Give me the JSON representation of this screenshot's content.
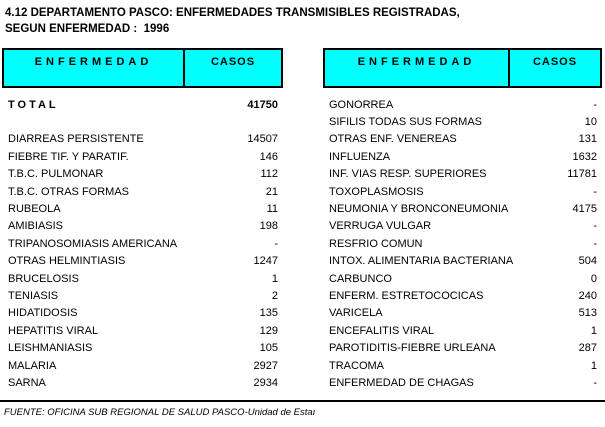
{
  "title": {
    "line1": "4.12 DEPARTAMENTO PASCO: ENFERMEDADES TRANSMISIBLES REGISTRADAS,",
    "line2": "SEGUN ENFERMEDAD :  1996"
  },
  "colors": {
    "header_bg": "#00FFFF",
    "border": "#000000",
    "text": "#000000",
    "page_bg": "#FFFFFF"
  },
  "left_table": {
    "headers": {
      "disease": "ENFERMEDAD",
      "cases": "CASOS"
    },
    "total_row": {
      "name": "TOTAL",
      "cases": "41750"
    },
    "rows": [
      {
        "name": "DIARREAS PERSISTENTE",
        "cases": "14507"
      },
      {
        "name": "FIEBRE TIF. Y PARATIF.",
        "cases": "146"
      },
      {
        "name": "T.B.C. PULMONAR",
        "cases": "112"
      },
      {
        "name": "T.B.C. OTRAS FORMAS",
        "cases": "21"
      },
      {
        "name": "RUBEOLA",
        "cases": "11"
      },
      {
        "name": "AMIBIASIS",
        "cases": "198"
      },
      {
        "name": "TRIPANOSOMIASIS AMERICANA",
        "cases": "-"
      },
      {
        "name": "OTRAS HELMINTIASIS",
        "cases": "1247"
      },
      {
        "name": "BRUCELOSIS",
        "cases": "1"
      },
      {
        "name": "TENIASIS",
        "cases": "2"
      },
      {
        "name": "HIDATIDOSIS",
        "cases": "135"
      },
      {
        "name": "HEPATITIS VIRAL",
        "cases": "129"
      },
      {
        "name": "LEISHMANIASIS",
        "cases": "105"
      },
      {
        "name": "MALARIA",
        "cases": "2927"
      },
      {
        "name": "SARNA",
        "cases": "2934"
      }
    ]
  },
  "right_table": {
    "headers": {
      "disease": "ENFERMEDAD",
      "cases": "CASOS"
    },
    "rows": [
      {
        "name": "GONORREA",
        "cases": "-"
      },
      {
        "name": "SIFILIS TODAS SUS FORMAS",
        "cases": "10"
      },
      {
        "name": "OTRAS ENF. VENEREAS",
        "cases": "131"
      },
      {
        "name": "INFLUENZA",
        "cases": "1632"
      },
      {
        "name": "INF. VIAS RESP. SUPERIORES",
        "cases": "11781"
      },
      {
        "name": "TOXOPLASMOSIS",
        "cases": "-"
      },
      {
        "name": "NEUMONIA Y BRONCONEUMONIA",
        "cases": "4175"
      },
      {
        "name": "VERRUGA VULGAR",
        "cases": "-"
      },
      {
        "name": "RESFRIO COMUN",
        "cases": "-"
      },
      {
        "name": "INTOX. ALIMENTARIA BACTERIANA",
        "cases": "504"
      },
      {
        "name": "CARBUNCO",
        "cases": "0"
      },
      {
        "name": "ENFERM. ESTRETOCOCICAS",
        "cases": "240"
      },
      {
        "name": "VARICELA",
        "cases": "513"
      },
      {
        "name": "ENCEFALITIS VIRAL",
        "cases": "1"
      },
      {
        "name": "PAROTIDITIS-FIEBRE URLEANA",
        "cases": "287"
      },
      {
        "name": "TRACOMA",
        "cases": "1"
      },
      {
        "name": "ENFERMEDAD DE CHAGAS",
        "cases": "-"
      }
    ]
  },
  "footer": {
    "source": "FUENTE: OFICINA SUB REGIONAL DE SALUD PASCO-Unidad de Estaı"
  }
}
